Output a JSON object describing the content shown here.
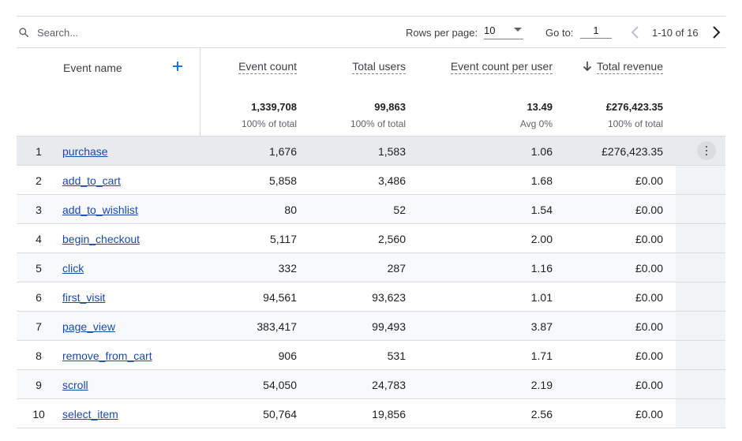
{
  "toolbar": {
    "search_placeholder": "Search...",
    "rows_per_page_label": "Rows per page:",
    "rows_per_page_value": "10",
    "goto_label": "Go to:",
    "goto_value": "1",
    "page_range": "1-10 of 16"
  },
  "header": {
    "event_name": "Event name",
    "event_count": "Event count",
    "total_users": "Total users",
    "event_count_per_user": "Event count per user",
    "total_revenue": "Total revenue"
  },
  "totals": {
    "event_count": "1,339,708",
    "event_count_sub": "100% of total",
    "total_users": "99,863",
    "total_users_sub": "100% of total",
    "event_count_per_user": "13.49",
    "event_count_per_user_sub": "Avg 0%",
    "total_revenue": "£276,423.35",
    "total_revenue_sub": "100% of total"
  },
  "colors": {
    "link": "#1a4aa8",
    "accent": "#1a73e8",
    "selected_row": "#e8eaed"
  },
  "rows": [
    {
      "rank": "1",
      "name": "purchase",
      "count": "1,676",
      "users": "1,583",
      "ecpu": "1.06",
      "revenue": "£276,423.35"
    },
    {
      "rank": "2",
      "name": "add_to_cart",
      "count": "5,858",
      "users": "3,486",
      "ecpu": "1.68",
      "revenue": "£0.00"
    },
    {
      "rank": "3",
      "name": "add_to_wishlist",
      "count": "80",
      "users": "52",
      "ecpu": "1.54",
      "revenue": "£0.00"
    },
    {
      "rank": "4",
      "name": "begin_checkout",
      "count": "5,117",
      "users": "2,560",
      "ecpu": "2.00",
      "revenue": "£0.00"
    },
    {
      "rank": "5",
      "name": "click",
      "count": "332",
      "users": "287",
      "ecpu": "1.16",
      "revenue": "£0.00"
    },
    {
      "rank": "6",
      "name": "first_visit",
      "count": "94,561",
      "users": "93,623",
      "ecpu": "1.01",
      "revenue": "£0.00"
    },
    {
      "rank": "7",
      "name": "page_view",
      "count": "383,417",
      "users": "99,493",
      "ecpu": "3.87",
      "revenue": "£0.00"
    },
    {
      "rank": "8",
      "name": "remove_from_cart",
      "count": "906",
      "users": "531",
      "ecpu": "1.71",
      "revenue": "£0.00"
    },
    {
      "rank": "9",
      "name": "scroll",
      "count": "54,050",
      "users": "24,783",
      "ecpu": "2.19",
      "revenue": "£0.00"
    },
    {
      "rank": "10",
      "name": "select_item",
      "count": "50,764",
      "users": "19,856",
      "ecpu": "2.56",
      "revenue": "£0.00"
    }
  ]
}
